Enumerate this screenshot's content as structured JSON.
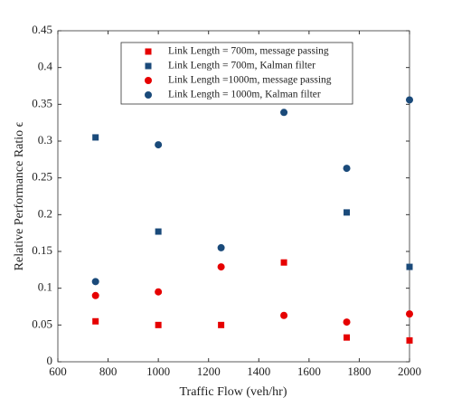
{
  "chart_data": {
    "type": "scatter",
    "x_label": "Traffic Flow (veh/hr)",
    "y_label": "Relative Performance Ratio ϵ",
    "xlim": [
      600,
      2000
    ],
    "xticks": [
      600,
      800,
      1000,
      1200,
      1400,
      1600,
      1800,
      2000
    ],
    "ylim": [
      0,
      0.45
    ],
    "yticks": [
      0,
      0.05,
      0.1,
      0.15,
      0.2,
      0.25,
      0.3,
      0.35,
      0.4,
      0.45
    ],
    "legend": "top",
    "series": [
      {
        "name": "Link Length = 700m, message passing",
        "color": "#e60000",
        "marker": "square",
        "x": [
          750,
          1000,
          1250,
          1500,
          1750,
          2000
        ],
        "values": [
          0.055,
          0.05,
          0.05,
          0.135,
          0.033,
          0.029
        ]
      },
      {
        "name": "Link Length = 700m, Kalman filter",
        "color": "#1a4a7a",
        "marker": "square",
        "x": [
          750,
          1000,
          1750,
          2000
        ],
        "values": [
          0.305,
          0.177,
          0.203,
          0.129
        ]
      },
      {
        "name": "Link Length =1000m, message passing",
        "color": "#e60000",
        "marker": "circle",
        "x": [
          750,
          1000,
          1250,
          1500,
          1750,
          2000
        ],
        "values": [
          0.09,
          0.095,
          0.129,
          0.063,
          0.054,
          0.065
        ]
      },
      {
        "name": "Link Length = 1000m, Kalman filter",
        "color": "#1a4a7a",
        "marker": "circle",
        "x": [
          750,
          1000,
          1250,
          1500,
          1750,
          2000
        ],
        "values": [
          0.109,
          0.295,
          0.155,
          0.339,
          0.263,
          0.356
        ]
      }
    ]
  }
}
